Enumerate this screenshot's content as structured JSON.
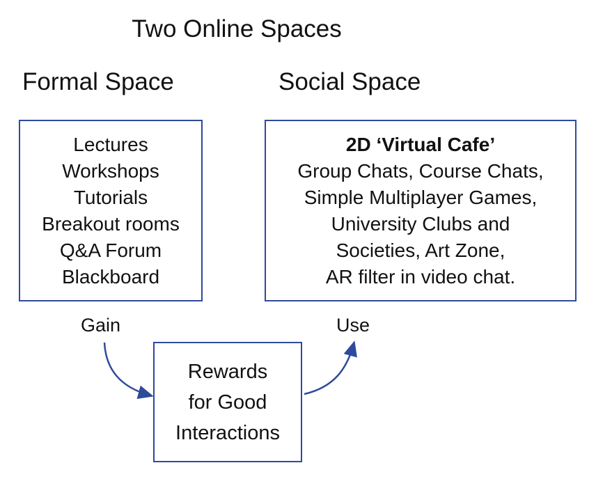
{
  "title": "Two Online Spaces",
  "formal": {
    "heading": "Formal Space",
    "items": [
      "Lectures",
      "Workshops",
      "Tutorials",
      "Breakout rooms",
      "Q&A Forum",
      "Blackboard"
    ]
  },
  "social": {
    "heading": "Social Space",
    "lead": "2D ‘Virtual Cafe’",
    "lines": [
      "Group Chats, Course Chats,",
      "Simple Multiplayer Games,",
      "University Clubs and",
      "Societies, Art Zone,",
      "AR filter in video chat."
    ]
  },
  "rewards": {
    "lines": [
      "Rewards",
      "for Good",
      "Interactions"
    ]
  },
  "flow": {
    "gain_label": "Gain",
    "use_label": "Use"
  },
  "colors": {
    "accent": "#2e4a9b",
    "text": "#111111"
  }
}
